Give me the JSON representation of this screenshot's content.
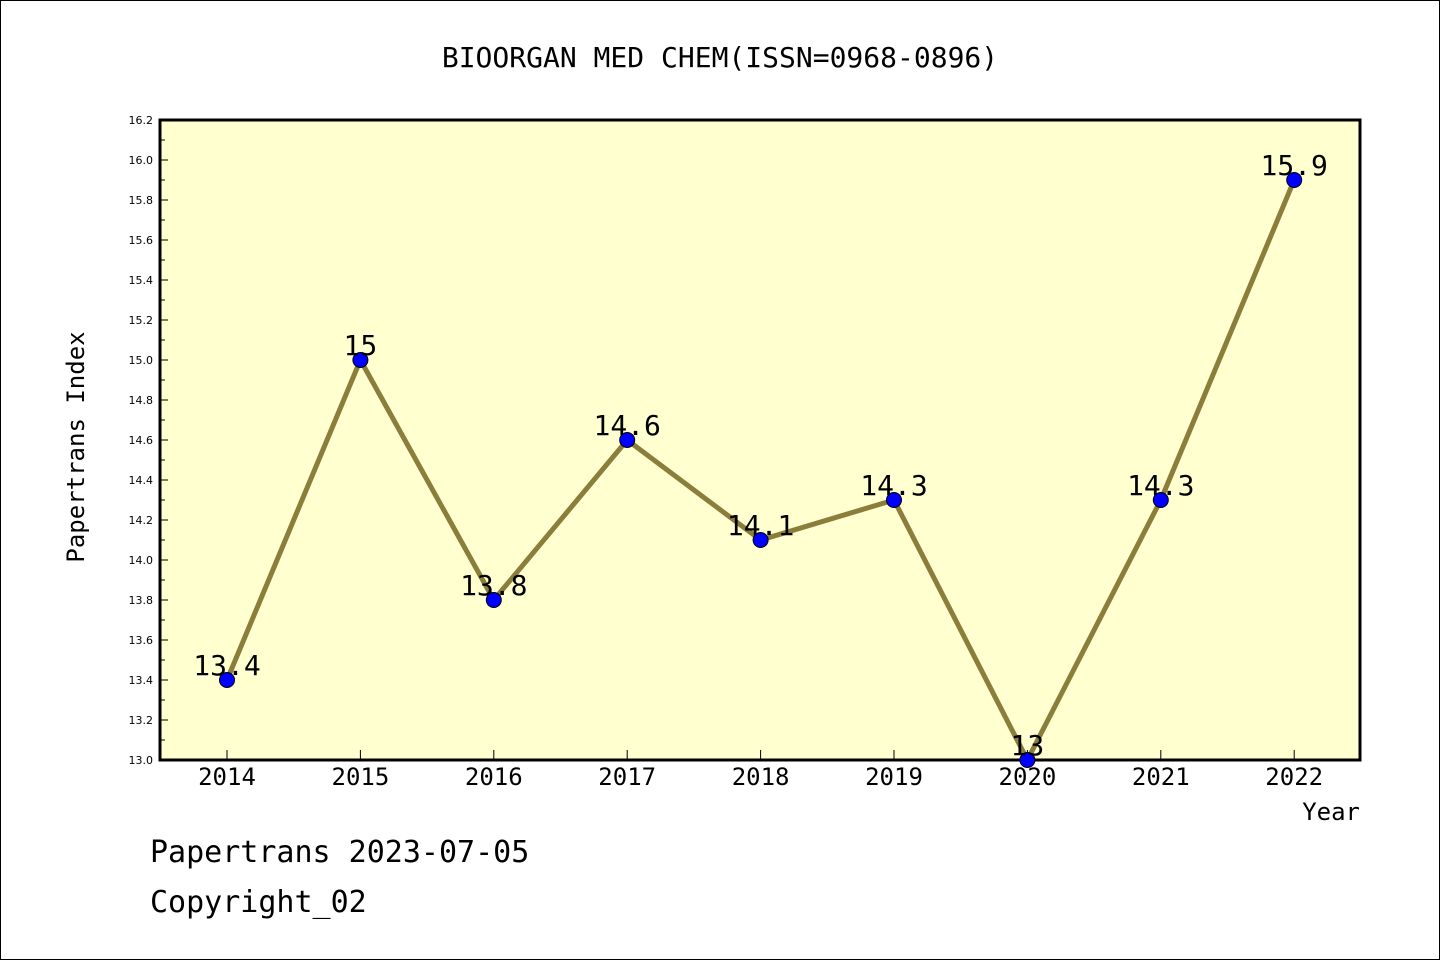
{
  "chart_data": {
    "type": "line",
    "title": "BIOORGAN MED CHEM(ISSN=0968-0896)",
    "xlabel": "Year",
    "ylabel": "Papertrans Index",
    "categories": [
      "2014",
      "2015",
      "2016",
      "2017",
      "2018",
      "2019",
      "2020",
      "2021",
      "2022"
    ],
    "series": [
      {
        "values": [
          13.4,
          15,
          13.8,
          14.6,
          14.1,
          14.3,
          13,
          14.3,
          15.9
        ],
        "labels": [
          "13.4",
          "15",
          "13.8",
          "14.6",
          "14.1",
          "14.3",
          "13",
          "14.3",
          "15.9"
        ]
      }
    ],
    "ylim": [
      13.0,
      16.2
    ],
    "yticks": [
      "13.0",
      "13.2",
      "13.4",
      "13.6",
      "13.8",
      "14.0",
      "14.2",
      "14.4",
      "14.6",
      "14.8",
      "15.0",
      "15.2",
      "15.4",
      "15.6",
      "15.8",
      "16.0",
      "16.2"
    ],
    "grid": false,
    "legend": "none",
    "colors": {
      "plot_background": "#ffffd0",
      "line": "#8b7d3a",
      "marker": "#0000ff"
    }
  },
  "footer": {
    "line1": "Papertrans 2023-07-05",
    "line2": "Copyright_02"
  }
}
